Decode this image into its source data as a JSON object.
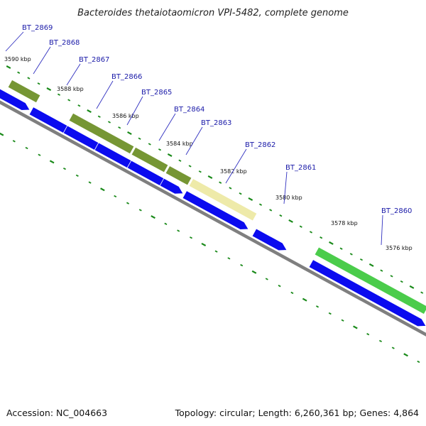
{
  "title": "Bacteroides thetaiotaomicron VPI-5482, complete genome",
  "accession": "Accession: NC_004663",
  "topology": "Topology: circular; Length: 6,260,361 bp; Genes: 4,864",
  "colors": {
    "backbone": "#7f7f7f",
    "cds_blue": "#0b0bef",
    "gene_olive": "#6b8e23",
    "gene_pale": "#ede9a2",
    "gene_green": "#3cc83c",
    "tick_green": "#1a8a1a",
    "label_blue": "#1a1aa8",
    "leader_blue": "#3030c0"
  },
  "gene_labels": [
    "BT_2869",
    "BT_2868",
    "BT_2867",
    "BT_2866",
    "BT_2865",
    "BT_2864",
    "BT_2863",
    "BT_2862",
    "BT_2861",
    "BT_2860"
  ],
  "position_labels": [
    "3590 kbp",
    "3588 kbp",
    "3586 kbp",
    "3584 kbp",
    "3582 kbp",
    "3580 kbp",
    "3578 kbp",
    "3576 kbp"
  ]
}
